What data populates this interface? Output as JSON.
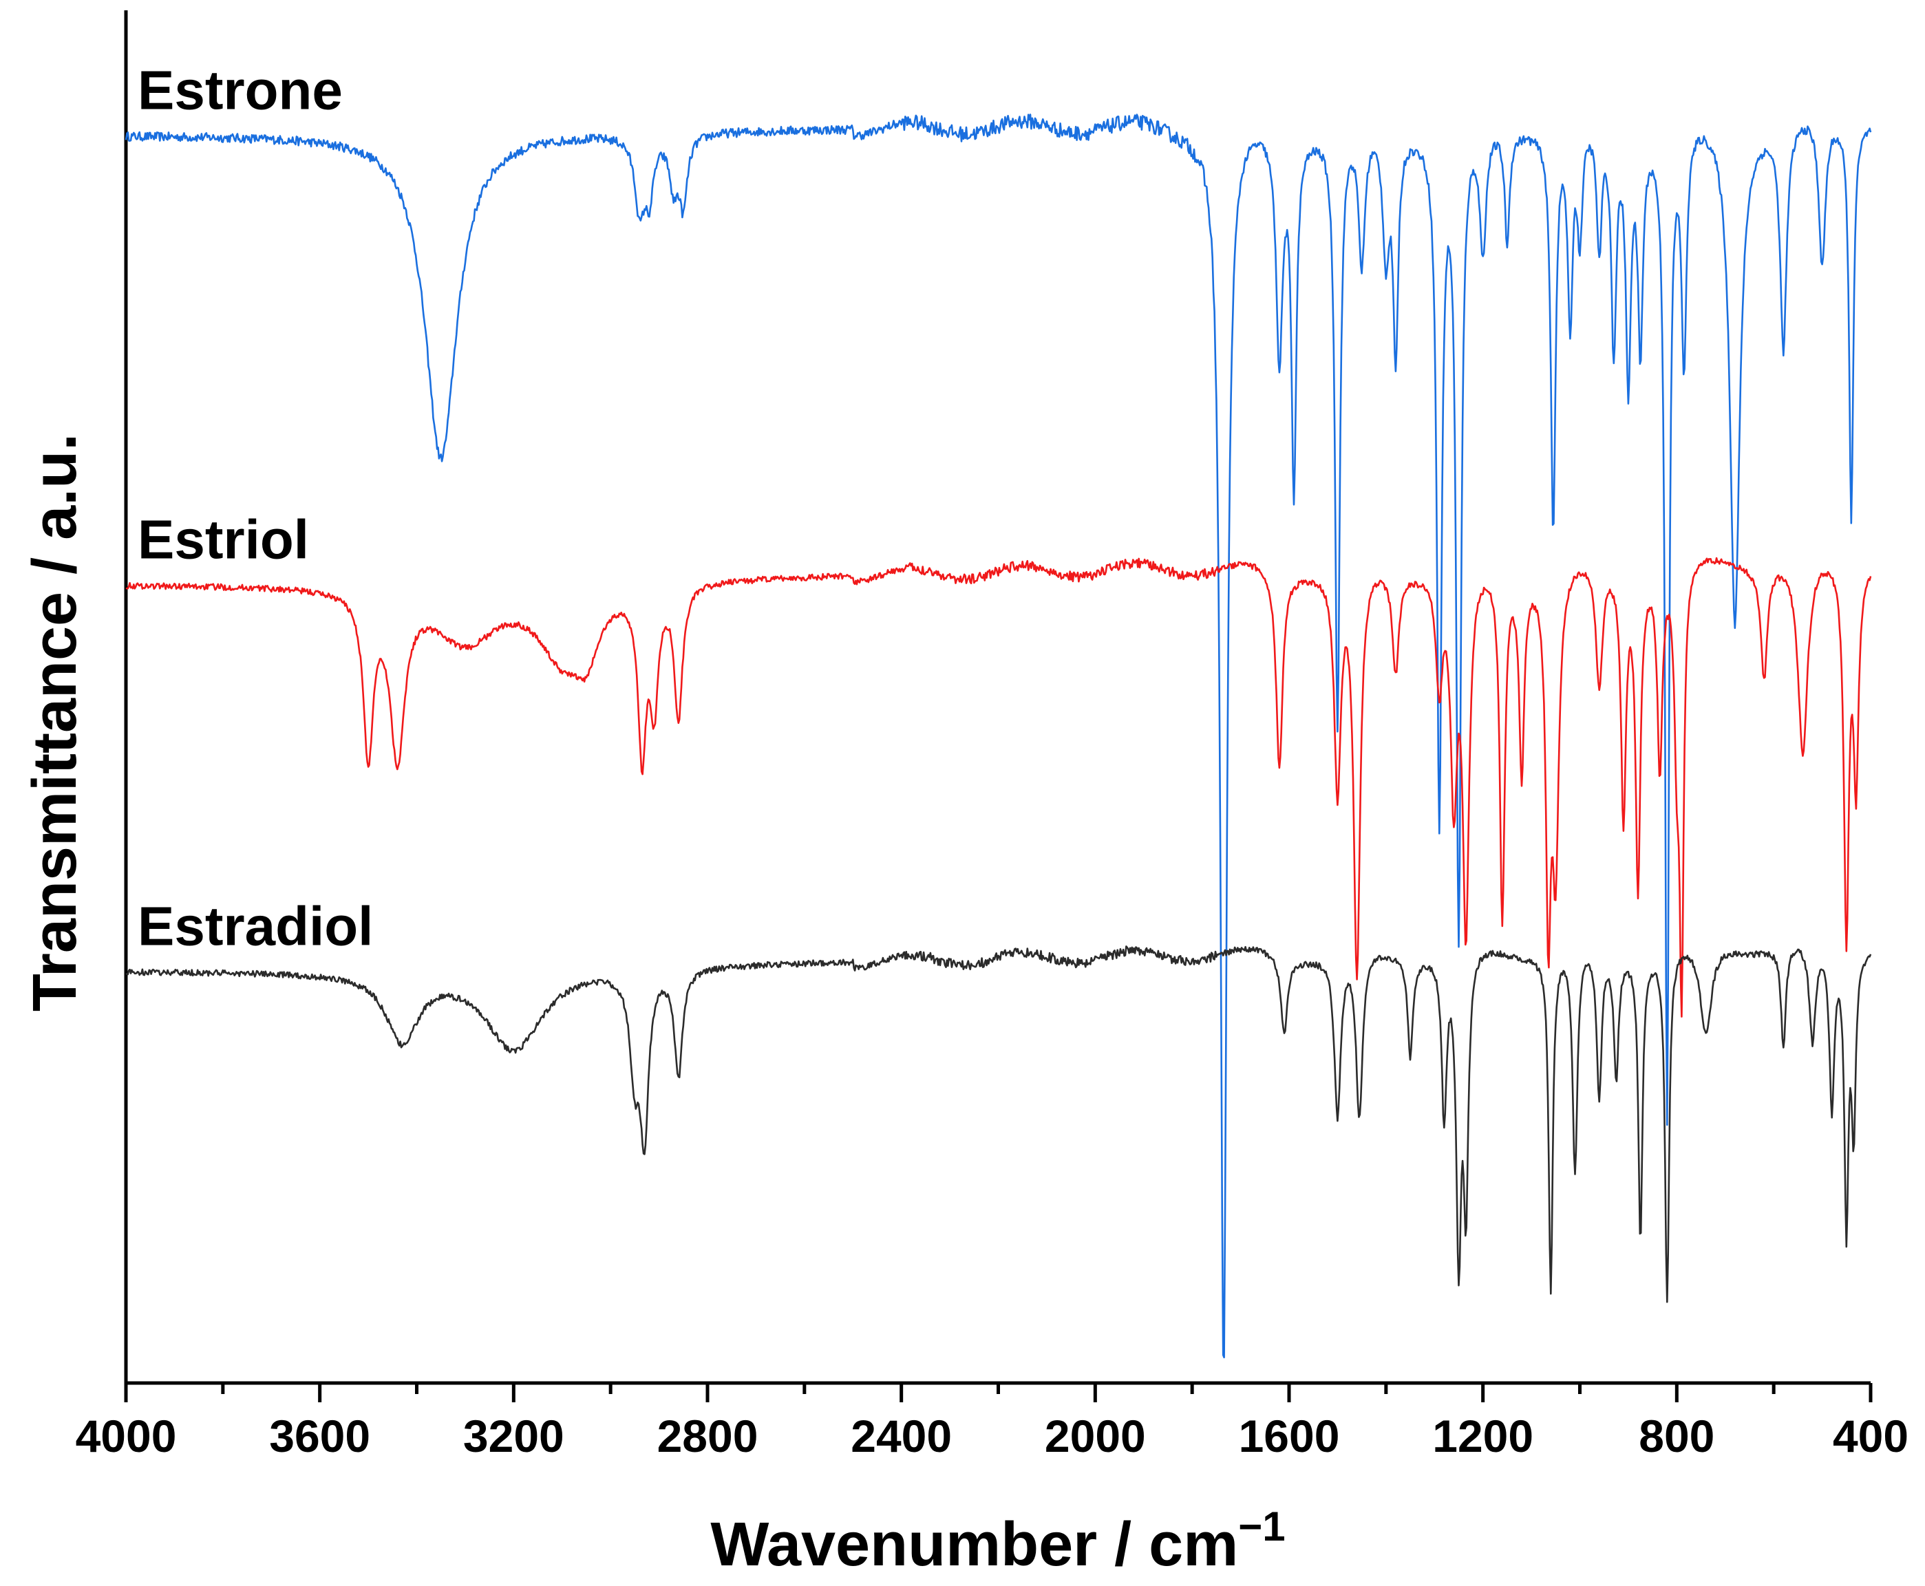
{
  "chart_data": {
    "type": "line",
    "title": "",
    "xlabel": "Wavenumber / cm",
    "xlabel_superscript": "−1",
    "ylabel": "Transmittance / a.u.",
    "xlim": [
      4000,
      400
    ],
    "ylim": [
      0,
      11
    ],
    "x_reversed": true,
    "y_ticks_shown": false,
    "grid": false,
    "legend": "inline labels above each trace",
    "x_ticks": [
      "4000",
      "3600",
      "3200",
      "2800",
      "2400",
      "2000",
      "1600",
      "1200",
      "800",
      "400"
    ],
    "series": [
      {
        "name": "Estrone",
        "color": "#1a6fdf",
        "baseline": 10.0,
        "slope": 0.1,
        "noise": 0.12,
        "peaks": [
          [
            3350,
            40,
            2.6
          ],
          [
            2940,
            12,
            0.6
          ],
          [
            2920,
            10,
            0.45
          ],
          [
            2870,
            10,
            0.4
          ],
          [
            2850,
            10,
            0.55
          ],
          [
            1735,
            8,
            10.0
          ],
          [
            1620,
            8,
            1.8
          ],
          [
            1590,
            6,
            2.8
          ],
          [
            1500,
            6,
            4.8
          ],
          [
            1450,
            8,
            1.1
          ],
          [
            1400,
            8,
            1.0
          ],
          [
            1380,
            6,
            1.8
          ],
          [
            1290,
            6,
            5.5
          ],
          [
            1250,
            6,
            6.5
          ],
          [
            1200,
            8,
            1.0
          ],
          [
            1150,
            6,
            0.9
          ],
          [
            1055,
            6,
            3.2
          ],
          [
            1020,
            6,
            1.6
          ],
          [
            1000,
            6,
            0.9
          ],
          [
            960,
            6,
            1.0
          ],
          [
            930,
            6,
            1.8
          ],
          [
            900,
            6,
            2.0
          ],
          [
            875,
            6,
            1.7
          ],
          [
            820,
            5,
            7.9
          ],
          [
            785,
            6,
            1.9
          ],
          [
            680,
            12,
            4.0
          ],
          [
            580,
            8,
            1.8
          ],
          [
            500,
            8,
            1.2
          ],
          [
            440,
            5,
            3.2
          ]
        ]
      },
      {
        "name": "Estriol",
        "color": "#f0191a",
        "baseline": 6.4,
        "slope": 0.15,
        "noise": 0.08,
        "peaks": [
          [
            3500,
            12,
            1.3
          ],
          [
            3440,
            18,
            1.3
          ],
          [
            3300,
            80,
            0.45
          ],
          [
            3100,
            60,
            0.55
          ],
          [
            3050,
            30,
            0.4
          ],
          [
            2935,
            10,
            1.3
          ],
          [
            2910,
            10,
            0.9
          ],
          [
            2860,
            10,
            1.05
          ],
          [
            1620,
            8,
            1.6
          ],
          [
            1500,
            8,
            1.8
          ],
          [
            1460,
            8,
            3.3
          ],
          [
            1380,
            8,
            0.8
          ],
          [
            1290,
            8,
            0.9
          ],
          [
            1260,
            8,
            1.8
          ],
          [
            1235,
            8,
            2.9
          ],
          [
            1160,
            6,
            2.8
          ],
          [
            1120,
            6,
            1.6
          ],
          [
            1065,
            6,
            2.7
          ],
          [
            1050,
            8,
            2.3
          ],
          [
            960,
            8,
            1.0
          ],
          [
            910,
            6,
            2.0
          ],
          [
            880,
            6,
            2.5
          ],
          [
            835,
            6,
            1.6
          ],
          [
            800,
            6,
            1.3
          ],
          [
            790,
            5,
            3.3
          ],
          [
            620,
            8,
            0.9
          ],
          [
            540,
            12,
            1.6
          ],
          [
            450,
            6,
            3.0
          ],
          [
            430,
            6,
            1.7
          ]
        ]
      },
      {
        "name": "Estradiol",
        "color": "#2b2b2b",
        "baseline": 3.3,
        "slope": 0.15,
        "noise": 0.08,
        "peaks": [
          [
            3430,
            40,
            0.55
          ],
          [
            3200,
            70,
            0.65
          ],
          [
            2950,
            12,
            0.8
          ],
          [
            2930,
            10,
            1.25
          ],
          [
            2860,
            10,
            0.85
          ],
          [
            1610,
            8,
            0.6
          ],
          [
            1500,
            8,
            1.3
          ],
          [
            1455,
            8,
            1.35
          ],
          [
            1350,
            6,
            0.8
          ],
          [
            1280,
            6,
            1.3
          ],
          [
            1250,
            6,
            2.4
          ],
          [
            1235,
            6,
            2.0
          ],
          [
            1060,
            5,
            2.7
          ],
          [
            1010,
            6,
            1.8
          ],
          [
            960,
            6,
            1.2
          ],
          [
            925,
            6,
            1.0
          ],
          [
            875,
            5,
            2.3
          ],
          [
            820,
            5,
            2.8
          ],
          [
            740,
            14,
            0.75
          ],
          [
            580,
            6,
            0.8
          ],
          [
            520,
            8,
            0.8
          ],
          [
            480,
            6,
            1.3
          ],
          [
            450,
            5,
            2.2
          ],
          [
            435,
            5,
            1.4
          ]
        ]
      }
    ]
  }
}
